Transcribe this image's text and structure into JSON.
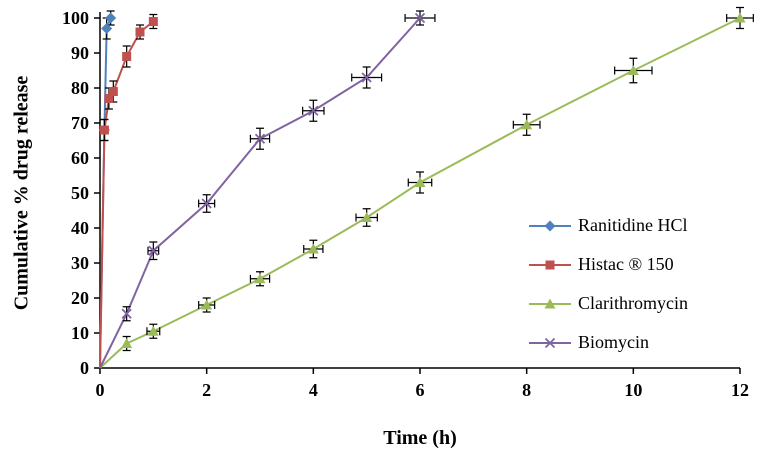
{
  "chart_data": {
    "type": "line",
    "title": "",
    "xlabel": "Time (h)",
    "ylabel": "Cumulative % drug release",
    "xlim": [
      0,
      12
    ],
    "ylim": [
      0,
      100
    ],
    "xticks": [
      0,
      2,
      4,
      6,
      8,
      10,
      12
    ],
    "yticks": [
      0,
      10,
      20,
      30,
      40,
      50,
      60,
      70,
      80,
      90,
      100
    ],
    "grid": false,
    "legend_position": "inside-right",
    "axis_color": "#000000",
    "error_bar_color": "#000000",
    "series": [
      {
        "name": "Ranitidine HCl",
        "color": "#4F81BD",
        "marker": "diamond",
        "points": [
          {
            "x": 0,
            "y": 0,
            "yerr": 0,
            "xerr": 0
          },
          {
            "x": 0.083,
            "y": 68,
            "yerr": 3,
            "xerr": 0
          },
          {
            "x": 0.125,
            "y": 97,
            "yerr": 3,
            "xerr": 0
          },
          {
            "x": 0.2,
            "y": 100,
            "yerr": 2,
            "xerr": 0
          }
        ]
      },
      {
        "name": "Histac ® 150",
        "color": "#C0504D",
        "marker": "square",
        "points": [
          {
            "x": 0,
            "y": 0,
            "yerr": 0,
            "xerr": 0
          },
          {
            "x": 0.083,
            "y": 68,
            "yerr": 3,
            "xerr": 0
          },
          {
            "x": 0.167,
            "y": 77,
            "yerr": 3,
            "xerr": 0
          },
          {
            "x": 0.25,
            "y": 79,
            "yerr": 3,
            "xerr": 0
          },
          {
            "x": 0.5,
            "y": 89,
            "yerr": 3,
            "xerr": 0
          },
          {
            "x": 0.75,
            "y": 96,
            "yerr": 2,
            "xerr": 0
          },
          {
            "x": 1,
            "y": 99,
            "yerr": 2,
            "xerr": 0
          }
        ]
      },
      {
        "name": "Clarithromycin",
        "color": "#9BBB59",
        "marker": "triangle",
        "points": [
          {
            "x": 0,
            "y": 0,
            "yerr": 0,
            "xerr": 0
          },
          {
            "x": 0.5,
            "y": 7,
            "yerr": 2,
            "xerr": 0
          },
          {
            "x": 1,
            "y": 10.5,
            "yerr": 2,
            "xerr": 0.12
          },
          {
            "x": 2,
            "y": 18,
            "yerr": 2,
            "xerr": 0.15
          },
          {
            "x": 3,
            "y": 25.5,
            "yerr": 2,
            "xerr": 0.18
          },
          {
            "x": 4,
            "y": 34,
            "yerr": 2.5,
            "xerr": 0.18
          },
          {
            "x": 5,
            "y": 43,
            "yerr": 2.5,
            "xerr": 0.2
          },
          {
            "x": 6,
            "y": 53,
            "yerr": 3,
            "xerr": 0.22
          },
          {
            "x": 8,
            "y": 69.5,
            "yerr": 3,
            "xerr": 0.25
          },
          {
            "x": 10,
            "y": 85,
            "yerr": 3.5,
            "xerr": 0.35
          },
          {
            "x": 12,
            "y": 100,
            "yerr": 3,
            "xerr": 0.25
          }
        ]
      },
      {
        "name": "Biomycin",
        "color": "#8064A2",
        "marker": "x",
        "points": [
          {
            "x": 0,
            "y": 0,
            "yerr": 0,
            "xerr": 0
          },
          {
            "x": 0.5,
            "y": 15.5,
            "yerr": 2,
            "xerr": 0
          },
          {
            "x": 1,
            "y": 33.5,
            "yerr": 2.5,
            "xerr": 0.1
          },
          {
            "x": 2,
            "y": 47,
            "yerr": 2.5,
            "xerr": 0.15
          },
          {
            "x": 3,
            "y": 65.5,
            "yerr": 3,
            "xerr": 0.18
          },
          {
            "x": 4,
            "y": 73.5,
            "yerr": 3,
            "xerr": 0.2
          },
          {
            "x": 5,
            "y": 83,
            "yerr": 3,
            "xerr": 0.28
          },
          {
            "x": 6,
            "y": 100,
            "yerr": 2,
            "xerr": 0.28
          }
        ]
      }
    ]
  }
}
